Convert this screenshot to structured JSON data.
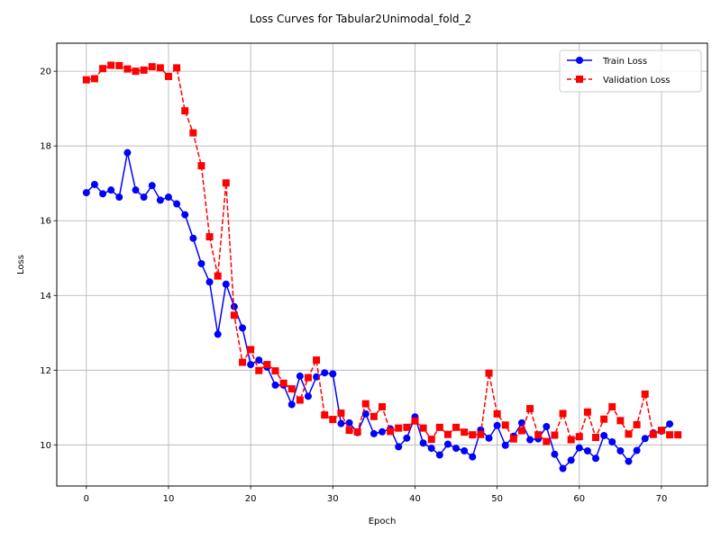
{
  "chart_data": {
    "type": "line",
    "title": "Loss Curves for Tabular2Unimodal_fold_2",
    "xlabel": "Epoch",
    "ylabel": "Loss",
    "xlim": [
      -3.6,
      75.6
    ],
    "ylim": [
      8.9,
      20.75
    ],
    "xticks": [
      0,
      10,
      20,
      30,
      40,
      50,
      60,
      70
    ],
    "yticks": [
      10,
      12,
      14,
      16,
      18,
      20
    ],
    "grid": true,
    "legend_position": "top-right",
    "series": [
      {
        "name": "Train Loss",
        "color": "#0000ff",
        "linestyle": "solid",
        "marker": "circle",
        "x": [
          0,
          1,
          2,
          3,
          4,
          5,
          6,
          7,
          8,
          9,
          10,
          11,
          12,
          13,
          14,
          15,
          16,
          17,
          18,
          19,
          20,
          21,
          22,
          23,
          24,
          25,
          26,
          27,
          28,
          29,
          30,
          31,
          32,
          33,
          34,
          35,
          36,
          37,
          38,
          39,
          40,
          41,
          42,
          43,
          44,
          45,
          46,
          47,
          48,
          49,
          50,
          51,
          52,
          53,
          54,
          55,
          56,
          57,
          58,
          59,
          60,
          61,
          62,
          63,
          64,
          65,
          66,
          67,
          68,
          69,
          70,
          71
        ],
        "values": [
          16.75,
          16.97,
          16.72,
          16.82,
          16.63,
          17.82,
          16.82,
          16.63,
          16.94,
          16.55,
          16.63,
          16.45,
          16.16,
          15.53,
          14.85,
          14.36,
          12.96,
          14.3,
          13.7,
          13.13,
          12.15,
          12.27,
          12.08,
          11.6,
          11.6,
          11.08,
          11.84,
          11.3,
          11.82,
          11.93,
          11.9,
          10.57,
          10.59,
          10.33,
          10.83,
          10.3,
          10.35,
          10.43,
          9.95,
          10.18,
          10.75,
          10.05,
          9.91,
          9.73,
          10.02,
          9.91,
          9.84,
          9.68,
          10.4,
          10.18,
          10.52,
          9.99,
          10.23,
          10.59,
          10.14,
          10.16,
          10.49,
          9.75,
          9.37,
          9.59,
          9.92,
          9.84,
          9.64,
          10.25,
          10.08,
          9.84,
          9.56,
          9.85,
          10.17,
          10.32,
          10.37,
          10.56
        ]
      },
      {
        "name": "Validation Loss",
        "color": "#ff0000",
        "linestyle": "dashed",
        "marker": "square",
        "x": [
          0,
          1,
          2,
          3,
          4,
          5,
          6,
          7,
          8,
          9,
          10,
          11,
          12,
          13,
          14,
          15,
          16,
          17,
          18,
          19,
          20,
          21,
          22,
          23,
          24,
          25,
          26,
          27,
          28,
          29,
          30,
          31,
          32,
          33,
          34,
          35,
          36,
          37,
          38,
          39,
          40,
          41,
          42,
          43,
          44,
          45,
          46,
          47,
          48,
          49,
          50,
          51,
          52,
          53,
          54,
          55,
          56,
          57,
          58,
          59,
          60,
          61,
          62,
          63,
          64,
          65,
          66,
          67,
          68,
          69,
          70,
          71,
          72
        ],
        "values": [
          19.77,
          19.8,
          20.07,
          20.16,
          20.15,
          20.06,
          20.0,
          20.03,
          20.12,
          20.09,
          19.86,
          20.09,
          18.94,
          18.35,
          17.47,
          15.57,
          14.52,
          17.01,
          13.47,
          12.21,
          12.55,
          11.99,
          12.15,
          11.98,
          11.65,
          11.5,
          11.2,
          11.8,
          12.27,
          10.8,
          10.68,
          10.85,
          10.39,
          10.35,
          11.1,
          10.76,
          11.02,
          10.36,
          10.45,
          10.47,
          10.64,
          10.45,
          10.15,
          10.47,
          10.28,
          10.47,
          10.34,
          10.27,
          10.28,
          11.92,
          10.83,
          10.53,
          10.16,
          10.38,
          10.97,
          10.27,
          10.09,
          10.26,
          10.84,
          10.14,
          10.22,
          10.88,
          10.2,
          10.69,
          11.02,
          10.65,
          10.29,
          10.54,
          11.36,
          10.28,
          10.39,
          10.27,
          10.27
        ]
      }
    ]
  }
}
